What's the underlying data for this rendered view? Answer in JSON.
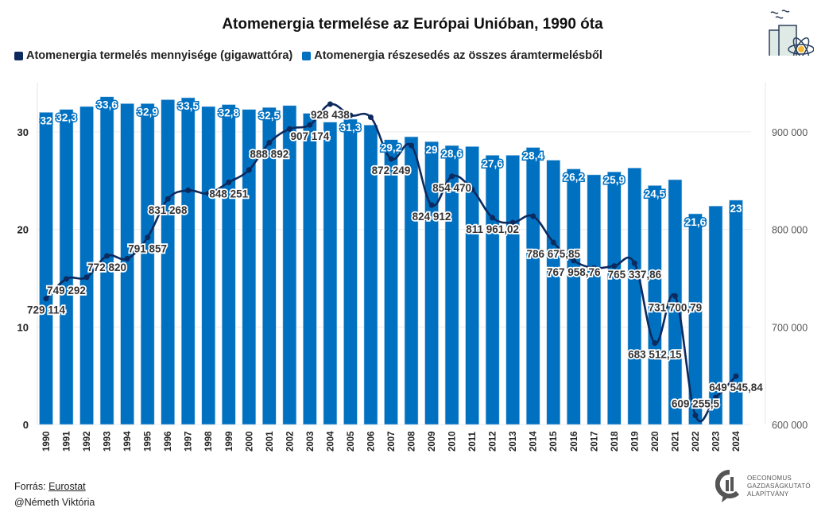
{
  "chart_data": {
    "type": "bar+line",
    "title": "Atomenergia termelése az Európai Unióban, 1990 óta",
    "legend_position": "top-left",
    "grid": true,
    "categories": [
      "1990",
      "1991",
      "1992",
      "1993",
      "1994",
      "1995",
      "1996",
      "1997",
      "1998",
      "1999",
      "2000",
      "2001",
      "2002",
      "2003",
      "2004",
      "2005",
      "2006",
      "2007",
      "2008",
      "2009",
      "2010",
      "2011",
      "2012",
      "2013",
      "2014",
      "2015",
      "2016",
      "2017",
      "2018",
      "2019",
      "2020",
      "2021",
      "2022",
      "2023",
      "2024"
    ],
    "series": [
      {
        "name": "Atomenergia termelés mennyisége (gigawattóra)",
        "type": "line",
        "axis": "right",
        "color": "#0d2a5e",
        "values": [
          729114,
          749292,
          751000,
          772820,
          770000,
          791857,
          831268,
          840000,
          837000,
          848251,
          861000,
          888892,
          903000,
          907174,
          928438,
          917000,
          915000,
          872249,
          886000,
          824912,
          854470,
          841000,
          811961.02,
          807000,
          813500,
          786675.85,
          767958.76,
          760500,
          762500,
          765337.86,
          683512.15,
          731700.79,
          609255.5,
          627700,
          649545.84
        ],
        "labels": [
          "729 114",
          "749 292",
          "",
          "772 820",
          "",
          "791 857",
          "831 268",
          "",
          "",
          "848 251",
          "",
          "888 892",
          "",
          "907 174",
          "928 438",
          "",
          "",
          "872 249",
          "",
          "824 912",
          "854 470",
          "",
          "811 961,02",
          "",
          "",
          "786 675,85",
          "767 958,76",
          "",
          "",
          "765 337,86",
          "683 512,15",
          "731 700,79",
          "609 255,5",
          "",
          "649 545,84"
        ]
      },
      {
        "name": "Atomenergia részesedés az összes áramtermelésből",
        "type": "bar",
        "axis": "left",
        "color": "#0070c0",
        "values": [
          32,
          32.3,
          32.6,
          33.6,
          32.9,
          32.9,
          33.3,
          33.5,
          32.6,
          32.8,
          32.3,
          32.5,
          32.7,
          31.9,
          31.0,
          31.3,
          30.7,
          29.2,
          29.5,
          29,
          28.6,
          28.5,
          27.6,
          27.6,
          28.4,
          27.1,
          26.2,
          25.6,
          25.9,
          26.3,
          24.5,
          25.1,
          21.6,
          22.4,
          23
        ],
        "labels": [
          "32",
          "32,3",
          "",
          "33,6",
          "",
          "32,9",
          "",
          "33,5",
          "",
          "32,8",
          "",
          "32,5",
          "",
          "",
          "",
          "31,3",
          "",
          "29,2",
          "",
          "29",
          "28,6",
          "",
          "27,6",
          "",
          "28,4",
          "",
          "26,2",
          "",
          "25,9",
          "",
          "24,5",
          "",
          "21,6",
          "",
          "23"
        ]
      }
    ],
    "y_left": {
      "ticks": [
        0,
        10,
        20,
        30
      ],
      "tick_labels": [
        "0",
        "10",
        "20",
        "30"
      ],
      "range": [
        0,
        34.5
      ]
    },
    "y_right": {
      "ticks": [
        600000,
        700000,
        800000,
        900000
      ],
      "tick_labels": [
        "600 000",
        "700 000",
        "800 000",
        "900 000"
      ],
      "range": [
        600000,
        930000
      ]
    }
  },
  "legend": {
    "line_label": "Atomenergia termelés mennyisége (gigawattóra)",
    "bar_label": "Atomenergia részesedés az összes áramtermelésből"
  },
  "footer": {
    "source_prefix": "Forrás: ",
    "source_link": "Eurostat",
    "author": "@Németh Viktória"
  },
  "logo": {
    "line1": "OECONOMUS",
    "line2": "GAZDASÁGKUTATÓ",
    "line3": "ALAPÍTVÁNY"
  },
  "icons": {
    "top_right": "nuclear-plant-icon"
  }
}
